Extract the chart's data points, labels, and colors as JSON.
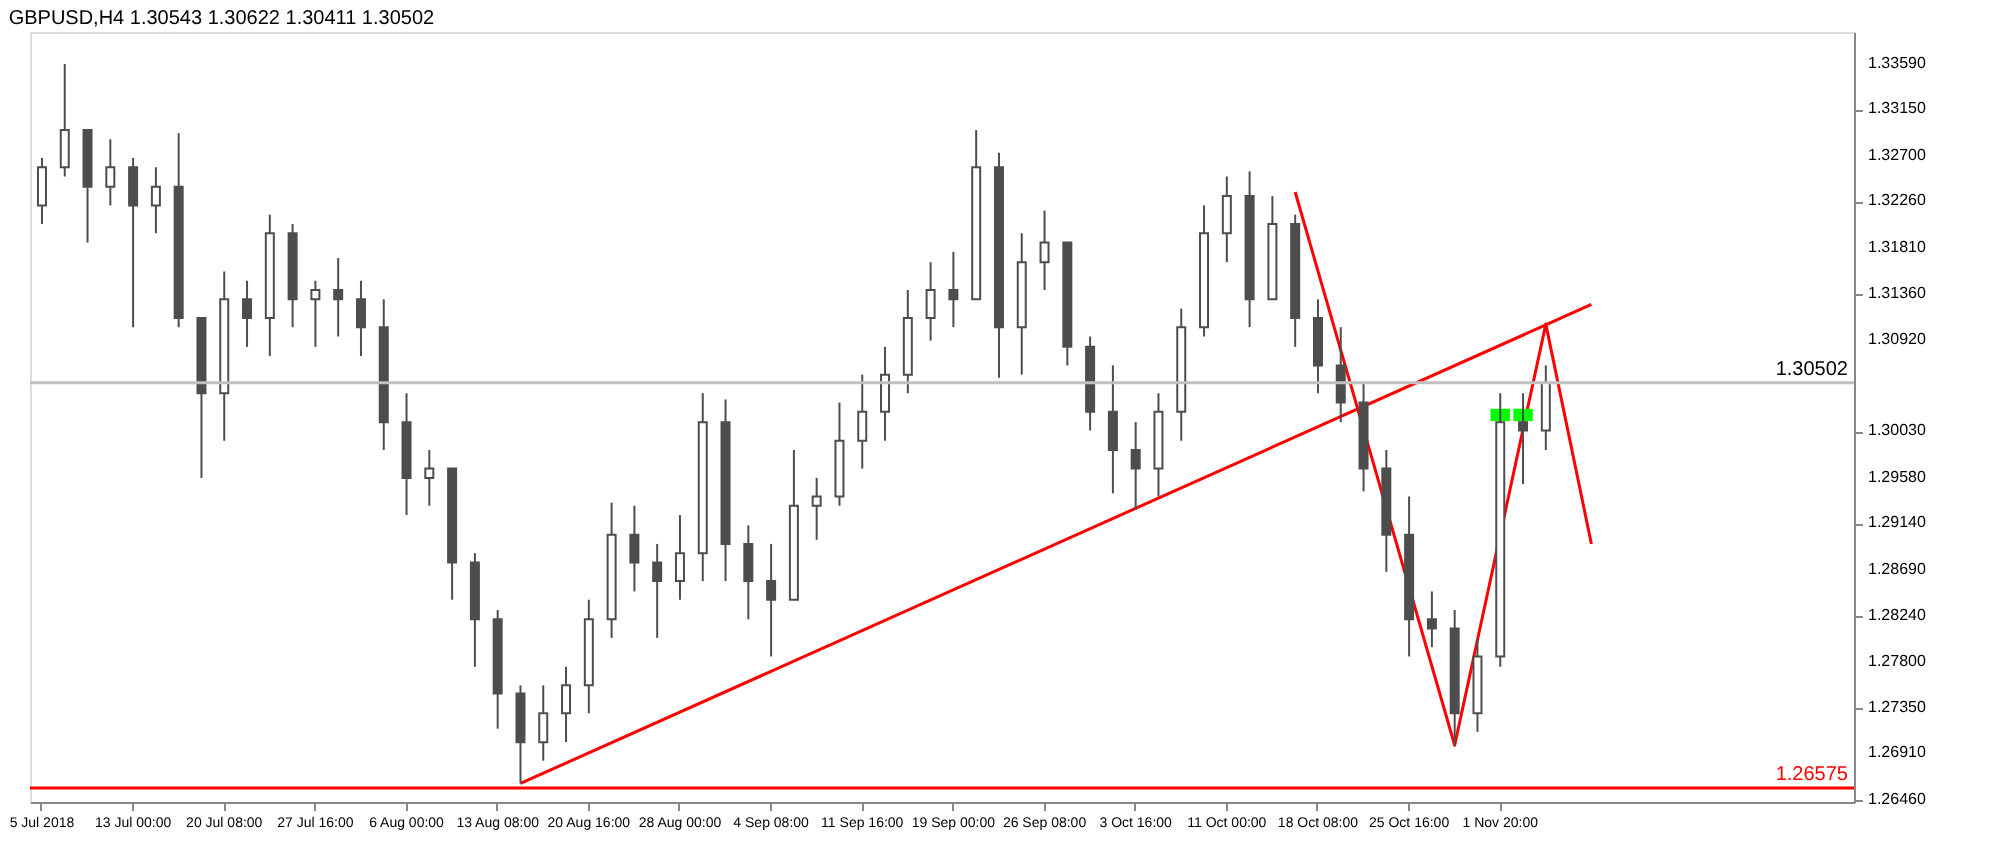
{
  "chart_data": {
    "type": "candlestick",
    "title": "GBPUSD,H4  1.30543 1.30622 1.30411 1.30502",
    "categories": [
      "5 Jul 2018",
      null,
      null,
      null,
      "13 Jul 00:00",
      null,
      null,
      null,
      "20 Jul 08:00",
      null,
      null,
      null,
      "27 Jul 16:00",
      null,
      null,
      null,
      "6 Aug 00:00",
      null,
      null,
      null,
      "13 Aug 08:00",
      null,
      null,
      null,
      "20 Aug 16:00",
      null,
      null,
      null,
      "28 Aug 00:00",
      null,
      null,
      null,
      "4 Sep 08:00",
      null,
      null,
      null,
      "11 Sep 16:00",
      null,
      null,
      null,
      "19 Sep 00:00",
      null,
      null,
      null,
      "26 Sep 08:00",
      null,
      null,
      null,
      "3 Oct 16:00",
      null,
      null,
      null,
      "11 Oct 00:00",
      null,
      null,
      null,
      "18 Oct 08:00",
      null,
      null,
      null,
      "25 Oct 16:00",
      null,
      null,
      null,
      "1 Nov 20:00",
      null,
      null,
      null,
      null,
      null,
      null,
      null,
      null,
      null,
      null,
      null,
      null,
      null,
      null,
      null
    ],
    "ylim": [
      1.2644,
      1.339
    ],
    "yticks": [
      {
        "value": 1.3359,
        "label": "1.33590"
      },
      {
        "value": 1.3315,
        "label": "1.33150"
      },
      {
        "value": 1.327,
        "label": "1.32700"
      },
      {
        "value": 1.3226,
        "label": "1.32260"
      },
      {
        "value": 1.3181,
        "label": "1.31810"
      },
      {
        "value": 1.3136,
        "label": "1.31360"
      },
      {
        "value": 1.3092,
        "label": "1.30920"
      },
      {
        "value": 1.3003,
        "label": "1.30030"
      },
      {
        "value": 1.2958,
        "label": "1.29580"
      },
      {
        "value": 1.2914,
        "label": "1.29140"
      },
      {
        "value": 1.2869,
        "label": "1.28690"
      },
      {
        "value": 1.2824,
        "label": "1.28240"
      },
      {
        "value": 1.278,
        "label": "1.27800"
      },
      {
        "value": 1.2735,
        "label": "1.27350"
      },
      {
        "value": 1.2691,
        "label": "1.26910"
      },
      {
        "value": 1.2646,
        "label": "1.26460"
      }
    ],
    "grid": false,
    "series": [
      {
        "type": "line",
        "color": "#ff0000",
        "values": [
          null,
          null,
          null,
          null,
          null,
          null,
          null,
          null,
          null,
          null,
          null,
          null,
          null,
          null,
          null,
          null,
          null,
          null,
          null,
          null,
          null,
          1.2662,
          null,
          null,
          null,
          null,
          null,
          null,
          null,
          null,
          null,
          null,
          null,
          null,
          null,
          null,
          null,
          null,
          null,
          null,
          null,
          null,
          null,
          null,
          null,
          null,
          null,
          null,
          null,
          null,
          null,
          null,
          null,
          null,
          null,
          null,
          null,
          null,
          null,
          null,
          null,
          null,
          null,
          null,
          null,
          null,
          null,
          null,
          1.3126,
          null,
          null,
          null,
          null,
          null,
          null,
          null,
          null,
          null,
          null,
          null
        ]
      },
      {
        "type": "line",
        "color": "#ff0000",
        "values": [
          null,
          null,
          null,
          null,
          null,
          null,
          null,
          null,
          null,
          null,
          null,
          null,
          null,
          null,
          null,
          null,
          null,
          null,
          null,
          null,
          null,
          null,
          null,
          null,
          null,
          null,
          null,
          null,
          null,
          null,
          null,
          null,
          null,
          null,
          null,
          null,
          null,
          null,
          null,
          null,
          null,
          null,
          null,
          null,
          null,
          null,
          null,
          null,
          null,
          null,
          null,
          null,
          null,
          null,
          null,
          1.3235,
          null,
          null,
          null,
          null,
          null,
          null,
          1.2699,
          null,
          null,
          null,
          1.3107,
          null,
          1.2894,
          null,
          null,
          null,
          null,
          null,
          null,
          null,
          null,
          null,
          null,
          null
        ]
      },
      {
        "type": "bar",
        "color": "#00ff00",
        "values": [
          null,
          null,
          null,
          null,
          null,
          null,
          null,
          null,
          null,
          null,
          null,
          null,
          null,
          null,
          null,
          null,
          null,
          null,
          null,
          null,
          null,
          null,
          null,
          null,
          null,
          null,
          null,
          null,
          null,
          null,
          null,
          null,
          null,
          null,
          null,
          null,
          null,
          null,
          null,
          null,
          null,
          null,
          null,
          null,
          null,
          null,
          null,
          null,
          null,
          null,
          null,
          null,
          null,
          null,
          null,
          null,
          null,
          null,
          null,
          null,
          null,
          null,
          null,
          null,
          0.0012,
          0.0012,
          null,
          null,
          null,
          null,
          null,
          null,
          null,
          null,
          null,
          null,
          null,
          null,
          null,
          null
        ],
        "base": [
          null,
          null,
          null,
          null,
          null,
          null,
          null,
          null,
          null,
          null,
          null,
          null,
          null,
          null,
          null,
          null,
          null,
          null,
          null,
          null,
          null,
          null,
          null,
          null,
          null,
          null,
          null,
          null,
          null,
          null,
          null,
          null,
          null,
          null,
          null,
          null,
          null,
          null,
          null,
          null,
          null,
          null,
          null,
          null,
          null,
          null,
          null,
          null,
          null,
          null,
          null,
          null,
          null,
          null,
          null,
          null,
          null,
          null,
          null,
          null,
          null,
          null,
          null,
          null,
          1.3013,
          1.3013,
          null,
          null,
          null,
          null,
          null,
          null,
          null,
          null,
          null,
          null,
          null,
          null,
          null,
          null
        ]
      },
      {
        "color": "#4d4d4d",
        "ohlc": [
          [
            1.3222,
            1.3268,
            1.3204,
            1.3259
          ],
          [
            1.3259,
            1.3359,
            1.325,
            1.3295
          ],
          [
            1.3295,
            1.3295,
            1.3186,
            1.324
          ],
          [
            1.324,
            1.3286,
            1.3222,
            1.3259
          ],
          [
            1.3259,
            1.3268,
            1.3104,
            1.3222
          ],
          [
            1.3222,
            1.3259,
            1.3195,
            1.324
          ],
          [
            1.324,
            1.3292,
            1.3104,
            1.3113
          ],
          [
            1.3113,
            1.3113,
            1.2958,
            1.304
          ],
          [
            1.304,
            1.3158,
            1.2994,
            1.3131
          ],
          [
            1.3131,
            1.3149,
            1.3085,
            1.3113
          ],
          [
            1.3113,
            1.3213,
            1.3076,
            1.3195
          ],
          [
            1.3195,
            1.3204,
            1.3104,
            1.3131
          ],
          [
            1.3131,
            1.3149,
            1.3085,
            1.314
          ],
          [
            1.314,
            1.3171,
            1.3095,
            1.3131
          ],
          [
            1.3131,
            1.3149,
            1.3076,
            1.3104
          ],
          [
            1.3104,
            1.3131,
            1.2985,
            1.3012
          ],
          [
            1.3012,
            1.304,
            1.2922,
            1.2958
          ],
          [
            1.2958,
            1.2985,
            1.2931,
            1.2967
          ],
          [
            1.2967,
            1.2967,
            1.284,
            1.2876
          ],
          [
            1.2876,
            1.2885,
            1.2775,
            1.2821
          ],
          [
            1.2821,
            1.283,
            1.2715,
            1.2749
          ],
          [
            1.2749,
            1.2757,
            1.2662,
            1.2702
          ],
          [
            1.2702,
            1.2757,
            1.2684,
            1.273
          ],
          [
            1.273,
            1.2775,
            1.2702,
            1.2757
          ],
          [
            1.2757,
            1.284,
            1.273,
            1.2821
          ],
          [
            1.2821,
            1.2934,
            1.2803,
            1.2903
          ],
          [
            1.2903,
            1.2931,
            1.2848,
            1.2876
          ],
          [
            1.2876,
            1.2894,
            1.2803,
            1.2858
          ],
          [
            1.2858,
            1.2922,
            1.284,
            1.2885
          ],
          [
            1.2885,
            1.304,
            1.2858,
            1.3012
          ],
          [
            1.3012,
            1.3034,
            1.2858,
            1.2894
          ],
          [
            1.2894,
            1.2912,
            1.2821,
            1.2858
          ],
          [
            1.2858,
            1.2894,
            1.2785,
            1.284
          ],
          [
            1.284,
            1.2985,
            1.284,
            1.2931
          ],
          [
            1.2931,
            1.2958,
            1.2898,
            1.294
          ],
          [
            1.294,
            1.3031,
            1.2931,
            1.2994
          ],
          [
            1.2994,
            1.3058,
            1.2967,
            1.3022
          ],
          [
            1.3022,
            1.3085,
            1.2994,
            1.3058
          ],
          [
            1.3058,
            1.314,
            1.304,
            1.3113
          ],
          [
            1.3113,
            1.3167,
            1.3091,
            1.314
          ],
          [
            1.314,
            1.3177,
            1.3104,
            1.3131
          ],
          [
            1.3131,
            1.3295,
            1.3131,
            1.3259
          ],
          [
            1.3259,
            1.3273,
            1.3055,
            1.3104
          ],
          [
            1.3104,
            1.3195,
            1.3058,
            1.3167
          ],
          [
            1.3167,
            1.3217,
            1.314,
            1.3186
          ],
          [
            1.3186,
            1.3186,
            1.3067,
            1.3085
          ],
          [
            1.3085,
            1.3095,
            1.3004,
            1.3022
          ],
          [
            1.3022,
            1.3067,
            1.2943,
            1.2985
          ],
          [
            1.2985,
            1.3012,
            1.2927,
            1.2967
          ],
          [
            1.2967,
            1.304,
            1.294,
            1.3022
          ],
          [
            1.3022,
            1.3122,
            1.2994,
            1.3104
          ],
          [
            1.3104,
            1.3222,
            1.3095,
            1.3195
          ],
          [
            1.3195,
            1.325,
            1.3167,
            1.3231
          ],
          [
            1.3231,
            1.3255,
            1.3104,
            1.3131
          ],
          [
            1.3131,
            1.3231,
            1.3131,
            1.3204
          ],
          [
            1.3204,
            1.3213,
            1.3085,
            1.3113
          ],
          [
            1.3113,
            1.3131,
            1.304,
            1.3067
          ],
          [
            1.3067,
            1.3104,
            1.3012,
            1.3031
          ],
          [
            1.3031,
            1.3049,
            1.2945,
            1.2967
          ],
          [
            1.2967,
            1.2985,
            1.2867,
            1.2903
          ],
          [
            1.2903,
            1.294,
            1.2785,
            1.2821
          ],
          [
            1.2821,
            1.2848,
            1.2794,
            1.2812
          ],
          [
            1.2812,
            1.283,
            1.2699,
            1.273
          ],
          [
            1.273,
            1.2803,
            1.2712,
            1.2785
          ],
          [
            1.2785,
            1.304,
            1.2775,
            1.3012
          ],
          [
            1.3012,
            1.304,
            1.2952,
            1.3004
          ],
          [
            1.3004,
            1.3067,
            1.2985,
            1.30502
          ],
          null,
          null,
          null,
          null,
          null,
          null,
          null,
          null,
          null,
          null,
          null,
          null,
          null
        ]
      }
    ],
    "ref_lines": [
      {
        "axis": "y",
        "value": 1.30502,
        "label": "1.30502",
        "color": "#c0c0c0"
      },
      {
        "axis": "y",
        "value": 1.26575,
        "label": "1.26575",
        "color": "#ff0000"
      }
    ]
  }
}
